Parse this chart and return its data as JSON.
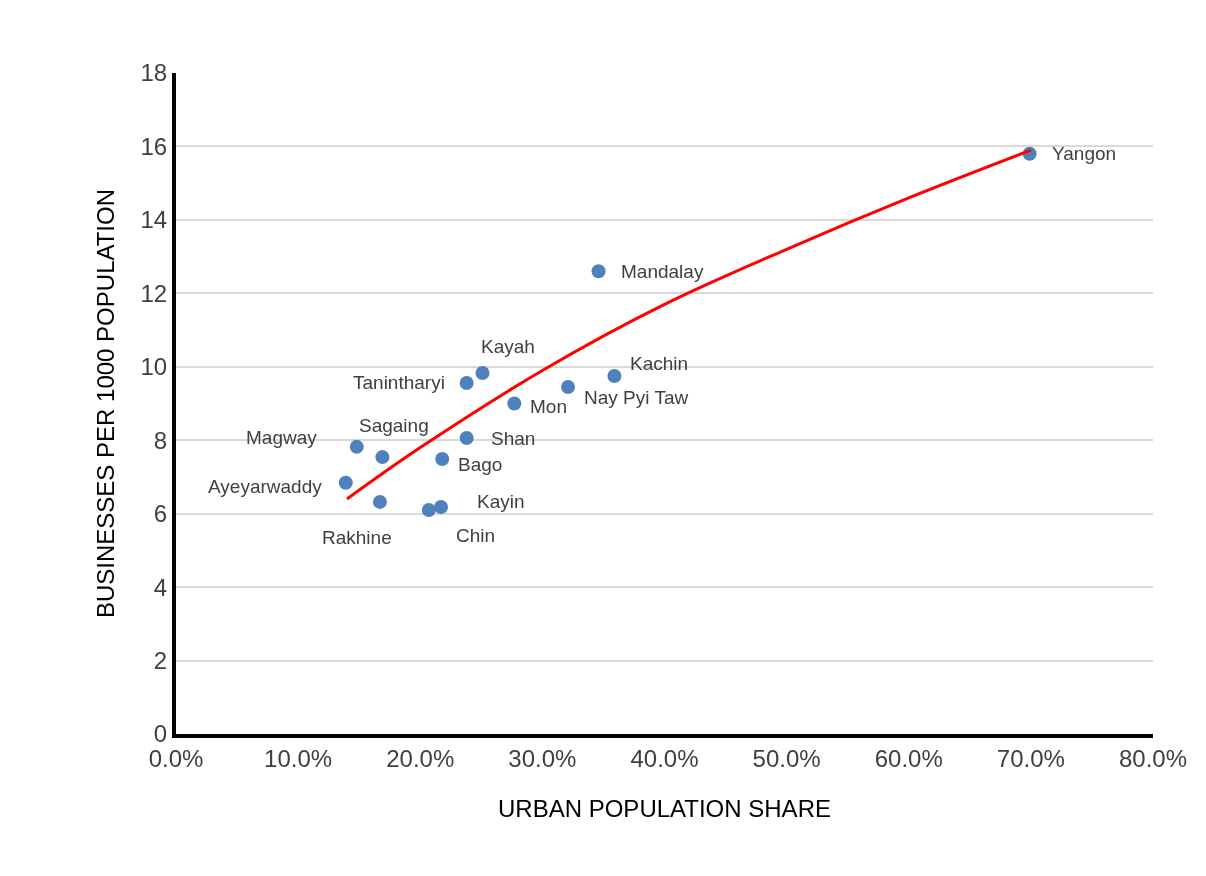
{
  "chart_data": {
    "type": "scatter",
    "xlabel": "URBAN POPULATION SHARE",
    "ylabel": "BUSINESSES PER 1000 POPULATION",
    "series": [
      {
        "color": "#4f81bd",
        "marker": "circle",
        "x": [
          69.9,
          34.6,
          35.9,
          32.1,
          27.7,
          25.1,
          23.8,
          23.8,
          21.8,
          16.9,
          14.8,
          13.9,
          16.7,
          20.7,
          21.7
        ],
        "values": [
          15.8,
          12.6,
          9.75,
          9.45,
          9.0,
          9.83,
          9.56,
          8.06,
          7.49,
          7.54,
          7.82,
          6.84,
          6.32,
          6.1,
          6.18
        ]
      },
      {
        "type": "line",
        "color": "#ff0000",
        "marker": "none",
        "line_style": "solid",
        "x": [
          14,
          20,
          30,
          40,
          50,
          60,
          70
        ],
        "values": [
          6.4,
          7.8,
          9.9,
          11.7,
          13.2,
          14.6,
          15.9
        ]
      }
    ],
    "annotations": [
      {
        "text": "Yangon",
        "x": 69.9,
        "y": 15.8
      },
      {
        "text": "Mandalay",
        "x": 34.6,
        "y": 12.6
      },
      {
        "text": "Kachin",
        "x": 35.9,
        "y": 9.75
      },
      {
        "text": "Nay Pyi Taw",
        "x": 32.1,
        "y": 9.45
      },
      {
        "text": "Mon",
        "x": 27.7,
        "y": 9.0
      },
      {
        "text": "Kayah",
        "x": 25.1,
        "y": 9.83
      },
      {
        "text": "Tanintharyi",
        "x": 23.8,
        "y": 9.56
      },
      {
        "text": "Shan",
        "x": 23.8,
        "y": 8.06
      },
      {
        "text": "Bago",
        "x": 21.8,
        "y": 7.49
      },
      {
        "text": "Sagaing",
        "x": 16.9,
        "y": 7.54
      },
      {
        "text": "Magway",
        "x": 14.8,
        "y": 7.82
      },
      {
        "text": "Ayeyarwaddy",
        "x": 13.9,
        "y": 6.84
      },
      {
        "text": "Rakhine",
        "x": 16.7,
        "y": 6.32
      },
      {
        "text": "Chin",
        "x": 20.7,
        "y": 6.1
      },
      {
        "text": "Kayin",
        "x": 21.7,
        "y": 6.18
      }
    ],
    "xlim": [
      0,
      80
    ],
    "xticks": [
      {
        "value": 0,
        "label": "0.0%"
      },
      {
        "value": 10,
        "label": "10.0%"
      },
      {
        "value": 20,
        "label": "20.0%"
      },
      {
        "value": 30,
        "label": "30.0%"
      },
      {
        "value": 40,
        "label": "40.0%"
      },
      {
        "value": 50,
        "label": "50.0%"
      },
      {
        "value": 60,
        "label": "60.0%"
      },
      {
        "value": 70,
        "label": "70.0%"
      },
      {
        "value": 80,
        "label": "80.0%"
      }
    ],
    "ylim": [
      0,
      18
    ],
    "yticks": [
      0,
      2,
      4,
      6,
      8,
      10,
      12,
      14,
      16,
      18
    ],
    "grid": "y"
  }
}
